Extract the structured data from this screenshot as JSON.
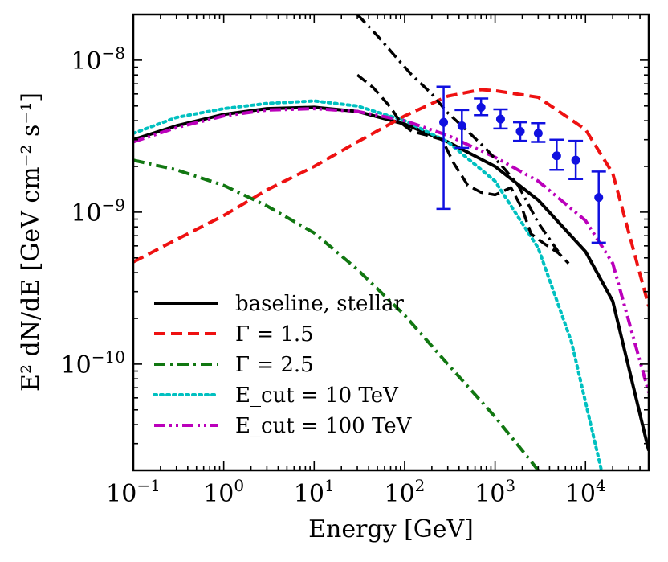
{
  "chart_data": {
    "type": "line",
    "xscale": "log",
    "yscale": "log",
    "xlabel": "Energy [GeV]",
    "ylabel": "E² dN/dE [GeV cm⁻² s⁻¹]",
    "xlim": [
      0.1,
      50000
    ],
    "ylim": [
      2e-11,
      2e-08
    ],
    "x_ticks": [
      {
        "value": 0.1,
        "base": "10",
        "exp": "−1"
      },
      {
        "value": 1,
        "base": "10",
        "exp": "0"
      },
      {
        "value": 10,
        "base": "10",
        "exp": "1"
      },
      {
        "value": 100,
        "base": "10",
        "exp": "2"
      },
      {
        "value": 1000,
        "base": "10",
        "exp": "3"
      },
      {
        "value": 10000,
        "base": "10",
        "exp": "4"
      }
    ],
    "y_ticks": [
      {
        "value": 1e-10,
        "base": "10",
        "exp": "−10"
      },
      {
        "value": 1e-09,
        "base": "10",
        "exp": "−9"
      },
      {
        "value": 1e-08,
        "base": "10",
        "exp": "−8"
      }
    ],
    "legend_position": "bottom-left",
    "series": [
      {
        "name": "baseline, stellar",
        "color": "#000000",
        "dash": "solid",
        "x": [
          0.1,
          0.3,
          1,
          3,
          10,
          30,
          100,
          300,
          1000,
          3000,
          10000,
          20000,
          50000
        ],
        "y": [
          3e-09,
          3.7e-09,
          4.4e-09,
          4.8e-09,
          4.9e-09,
          4.6e-09,
          3.8e-09,
          2.9e-09,
          2e-09,
          1.2e-09,
          5.5e-10,
          2.6e-10,
          2.7e-11
        ]
      },
      {
        "name": "Γ = 1.5",
        "color": "#ee1111",
        "dash": "dashed",
        "x": [
          0.1,
          0.3,
          1,
          3,
          10,
          30,
          100,
          300,
          700,
          1000,
          3000,
          10000,
          20000,
          50000
        ],
        "y": [
          4.7e-10,
          6.6e-10,
          9.5e-10,
          1.4e-09,
          2e-09,
          2.9e-09,
          4.3e-09,
          5.8e-09,
          6.4e-09,
          6.3e-09,
          5.7e-09,
          3.5e-09,
          1.8e-09,
          2.4e-10
        ]
      },
      {
        "name": "Γ = 2.5",
        "color": "#117711",
        "dash": "dashdot",
        "x": [
          0.1,
          0.3,
          1,
          3,
          10,
          30,
          100,
          300,
          1000,
          3000
        ],
        "y": [
          2.2e-09,
          1.9e-09,
          1.5e-09,
          1.1e-09,
          7.3e-10,
          4.2e-10,
          2.1e-10,
          1e-10,
          4.5e-11,
          2e-11
        ]
      },
      {
        "name": "E_cut = 10 TeV",
        "color": "#00c0c0",
        "dash": "dotted",
        "x": [
          0.1,
          0.3,
          1,
          3,
          10,
          30,
          100,
          300,
          1000,
          3000,
          7000,
          15000
        ],
        "y": [
          3.3e-09,
          4.2e-09,
          4.8e-09,
          5.2e-09,
          5.4e-09,
          5e-09,
          4e-09,
          2.9e-09,
          1.6e-09,
          5.8e-10,
          1.4e-10,
          2e-11
        ]
      },
      {
        "name": "E_cut = 100 TeV",
        "color": "#bb00bb",
        "dash": "dashdotdot",
        "x": [
          0.1,
          0.3,
          1,
          3,
          10,
          30,
          100,
          300,
          1000,
          3000,
          10000,
          20000,
          50000
        ],
        "y": [
          2.9e-09,
          3.6e-09,
          4.3e-09,
          4.7e-09,
          4.8e-09,
          4.6e-09,
          4e-09,
          3.2e-09,
          2.3e-09,
          1.6e-09,
          8.8e-10,
          4.6e-10,
          6.5e-11
        ]
      }
    ],
    "extra_lines": [
      {
        "name": "black dash-dot (steep)",
        "color": "#000000",
        "dash": "dashdot",
        "x": [
          30,
          50,
          80,
          120,
          200,
          300,
          500,
          800,
          1300,
          1800,
          3000,
          5000
        ],
        "y": [
          2e-08,
          1.45e-08,
          1.05e-08,
          8e-09,
          6e-09,
          4.5e-09,
          3.4e-09,
          2.6e-09,
          1.9e-09,
          1.5e-09,
          8.5e-10,
          5.5e-10
        ]
      },
      {
        "name": "black dashed band",
        "color": "#000000",
        "dash": "dashed",
        "x": [
          30,
          45,
          70,
          90,
          120,
          180,
          260,
          350,
          500,
          700,
          1000,
          1500,
          2000,
          2500,
          3500,
          5000,
          6500
        ],
        "y": [
          8e-09,
          6.6e-09,
          4.9e-09,
          3.9e-09,
          3.4e-09,
          3.2e-09,
          3e-09,
          2.1e-09,
          1.5e-09,
          1.35e-09,
          1.3e-09,
          1.45e-09,
          1.05e-09,
          7.2e-10,
          6.2e-10,
          5.4e-10,
          4.6e-10
        ]
      }
    ],
    "data_points": {
      "color": "#1010e0",
      "x": [
        270,
        430,
        700,
        1150,
        1900,
        3000,
        4800,
        7800,
        14000
      ],
      "y": [
        3.9e-09,
        3.7e-09,
        4.9e-09,
        4.1e-09,
        3.4e-09,
        3.3e-09,
        2.35e-09,
        2.2e-09,
        1.25e-09
      ],
      "y_low": [
        1.05e-09,
        2.65e-09,
        4.35e-09,
        3.55e-09,
        2.95e-09,
        2.9e-09,
        1.9e-09,
        1.65e-09,
        6.3e-10
      ],
      "y_high": [
        6.7e-09,
        4.7e-09,
        5.6e-09,
        4.75e-09,
        3.9e-09,
        3.85e-09,
        3e-09,
        2.95e-09,
        1.85e-09
      ]
    }
  }
}
